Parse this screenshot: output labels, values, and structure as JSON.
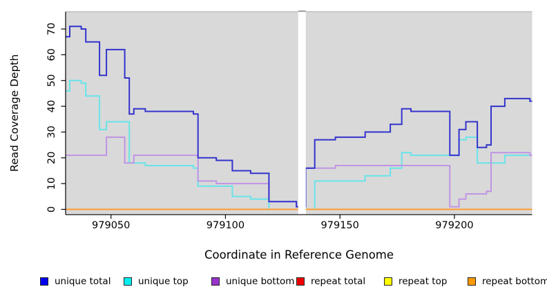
{
  "chart_data": {
    "type": "line",
    "line_style": "step",
    "title": "",
    "xlabel": "Coordinate in Reference Genome",
    "ylabel": "Read Coverage Depth",
    "x_ticks": [
      979050,
      979100,
      979150,
      979200
    ],
    "y_ticks": [
      0,
      10,
      20,
      30,
      40,
      50,
      60,
      70
    ],
    "x_range": [
      979030,
      979234
    ],
    "y_range": [
      0,
      76
    ],
    "panel_background": "#d9d9d9",
    "grid": "off",
    "legend_position": "bottom",
    "data_gap": {
      "x_start": 979132,
      "x_end": 979135
    },
    "series": [
      {
        "name": "unique total",
        "color": "#3232cd",
        "legend_color": "#0000ee",
        "points": [
          [
            979030,
            67
          ],
          [
            979032,
            71
          ],
          [
            979037,
            70
          ],
          [
            979039,
            65
          ],
          [
            979045,
            52
          ],
          [
            979048,
            62
          ],
          [
            979056,
            51
          ],
          [
            979058,
            37
          ],
          [
            979060,
            39
          ],
          [
            979065,
            38
          ],
          [
            979086,
            37
          ],
          [
            979088,
            20
          ],
          [
            979096,
            19
          ],
          [
            979103,
            15
          ],
          [
            979111,
            14
          ],
          [
            979119,
            3
          ],
          [
            979131,
            1
          ],
          [
            979135,
            16
          ],
          [
            979139,
            27
          ],
          [
            979148,
            28
          ],
          [
            979161,
            30
          ],
          [
            979172,
            33
          ],
          [
            979177,
            39
          ],
          [
            979181,
            38
          ],
          [
            979198,
            21
          ],
          [
            979202,
            31
          ],
          [
            979205,
            34
          ],
          [
            979210,
            24
          ],
          [
            979214,
            25
          ],
          [
            979216,
            40
          ],
          [
            979222,
            43
          ],
          [
            979233,
            42
          ]
        ]
      },
      {
        "name": "unique top",
        "color": "#68e4e9",
        "legend_color": "#00eeee",
        "points": [
          [
            979030,
            46
          ],
          [
            979032,
            50
          ],
          [
            979037,
            49
          ],
          [
            979039,
            44
          ],
          [
            979045,
            31
          ],
          [
            979048,
            34
          ],
          [
            979058,
            18
          ],
          [
            979065,
            17
          ],
          [
            979086,
            16
          ],
          [
            979088,
            9
          ],
          [
            979103,
            5
          ],
          [
            979111,
            4
          ],
          [
            979119,
            0
          ],
          [
            979139,
            11
          ],
          [
            979161,
            13
          ],
          [
            979172,
            16
          ],
          [
            979177,
            22
          ],
          [
            979181,
            21
          ],
          [
            979202,
            27
          ],
          [
            979205,
            28
          ],
          [
            979210,
            18
          ],
          [
            979222,
            21
          ]
        ]
      },
      {
        "name": "unique bottom",
        "color": "#bf94e4",
        "legend_color": "#9933cc",
        "points": [
          [
            979030,
            21
          ],
          [
            979048,
            28
          ],
          [
            979056,
            18
          ],
          [
            979060,
            21
          ],
          [
            979088,
            11
          ],
          [
            979096,
            10
          ],
          [
            979119,
            3
          ],
          [
            979131,
            1
          ],
          [
            979135,
            16
          ],
          [
            979148,
            17
          ],
          [
            979198,
            1
          ],
          [
            979202,
            4
          ],
          [
            979205,
            6
          ],
          [
            979214,
            7
          ],
          [
            979216,
            22
          ],
          [
            979233,
            21
          ]
        ]
      },
      {
        "name": "repeat total",
        "color": "#dd0000",
        "legend_color": "#ee0000",
        "points": [
          [
            979030,
            0
          ]
        ]
      },
      {
        "name": "repeat top",
        "color": "#ffff00",
        "legend_color": "#ffff00",
        "points": [
          [
            979030,
            0
          ]
        ]
      },
      {
        "name": "repeat bottom",
        "color": "#ff9d2e",
        "legend_color": "#ff9900",
        "points": [
          [
            979030,
            0
          ]
        ]
      }
    ]
  }
}
